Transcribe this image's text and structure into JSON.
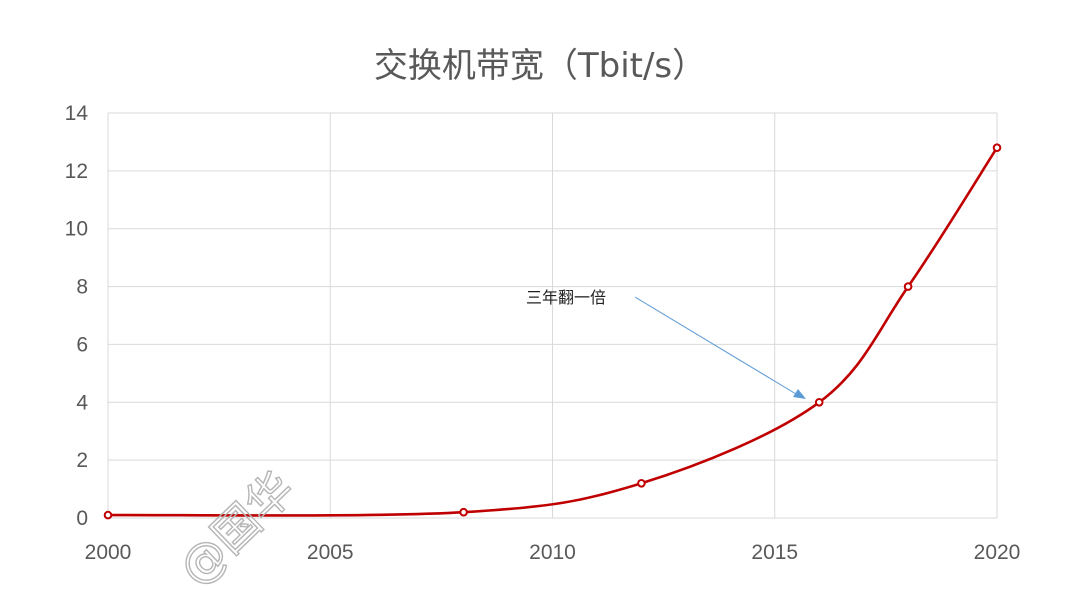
{
  "chart_data": {
    "type": "line",
    "title": "交换机带宽（Tbit/s）",
    "xlabel": "",
    "ylabel": "",
    "xlim": [
      2000,
      2020
    ],
    "ylim": [
      0,
      14
    ],
    "x_ticks": [
      "2000",
      "2005",
      "2010",
      "2015",
      "2020"
    ],
    "y_ticks": [
      "0",
      "2",
      "4",
      "6",
      "8",
      "10",
      "12",
      "14"
    ],
    "grid": true,
    "smooth": true,
    "series": [
      {
        "color": "#c00000",
        "points": [
          {
            "x": 2000,
            "y": 0.1
          },
          {
            "x": 2008,
            "y": 0.2
          },
          {
            "x": 2012,
            "y": 1.2
          },
          {
            "x": 2016,
            "y": 4.0
          },
          {
            "x": 2018,
            "y": 8.0
          },
          {
            "x": 2020,
            "y": 12.8
          }
        ]
      }
    ],
    "annotation": {
      "text": "三年翻一倍",
      "arrow_color": "#5b9bd5"
    },
    "watermark": "@国华"
  }
}
